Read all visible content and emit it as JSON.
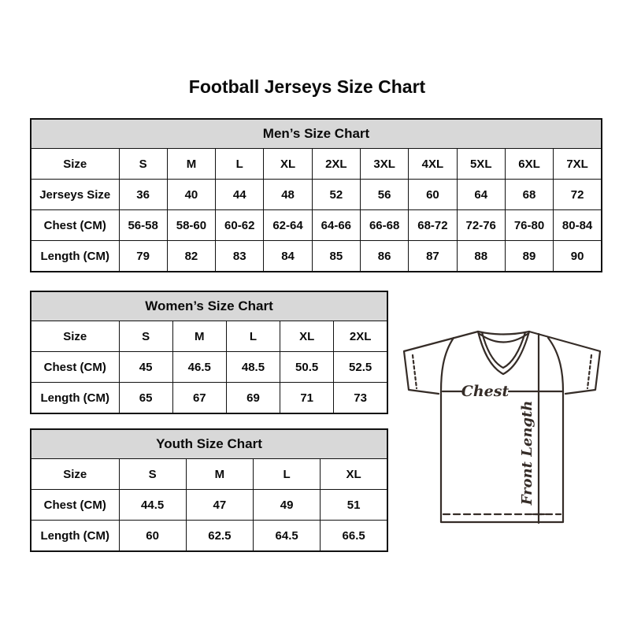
{
  "page_title": "Football Jerseys Size Chart",
  "colors": {
    "background": "#ffffff",
    "table_header_bg": "#d8d8d8",
    "table_border": "#111111",
    "text": "#0a0a0a",
    "jersey_line": "#352c27"
  },
  "tables": [
    {
      "id": "men",
      "title": "Men’s Size Chart",
      "size_row_label": "Size",
      "sizes": [
        "S",
        "M",
        "L",
        "XL",
        "2XL",
        "3XL",
        "4XL",
        "5XL",
        "6XL",
        "7XL"
      ],
      "rows": [
        {
          "label": "Jerseys Size",
          "values": [
            "36",
            "40",
            "44",
            "48",
            "52",
            "56",
            "60",
            "64",
            "68",
            "72"
          ]
        },
        {
          "label": "Chest (CM)",
          "values": [
            "56-58",
            "58-60",
            "60-62",
            "62-64",
            "64-66",
            "66-68",
            "68-72",
            "72-76",
            "76-80",
            "80-84"
          ]
        },
        {
          "label": "Length (CM)",
          "values": [
            "79",
            "82",
            "83",
            "84",
            "85",
            "86",
            "87",
            "88",
            "89",
            "90"
          ]
        }
      ]
    },
    {
      "id": "women",
      "title": "Women’s Size Chart",
      "size_row_label": "Size",
      "sizes": [
        "S",
        "M",
        "L",
        "XL",
        "2XL"
      ],
      "rows": [
        {
          "label": "Chest (CM)",
          "values": [
            "45",
            "46.5",
            "48.5",
            "50.5",
            "52.5"
          ]
        },
        {
          "label": "Length (CM)",
          "values": [
            "65",
            "67",
            "69",
            "71",
            "73"
          ]
        }
      ]
    },
    {
      "id": "youth",
      "title": "Youth Size Chart",
      "size_row_label": "Size",
      "sizes": [
        "S",
        "M",
        "L",
        "XL"
      ],
      "rows": [
        {
          "label": "Chest (CM)",
          "values": [
            "44.5",
            "47",
            "49",
            "51"
          ]
        },
        {
          "label": "Length (CM)",
          "values": [
            "60",
            "62.5",
            "64.5",
            "66.5"
          ]
        }
      ]
    }
  ],
  "jersey": {
    "chest_label": "Chest",
    "front_length_label": "Front Length"
  }
}
